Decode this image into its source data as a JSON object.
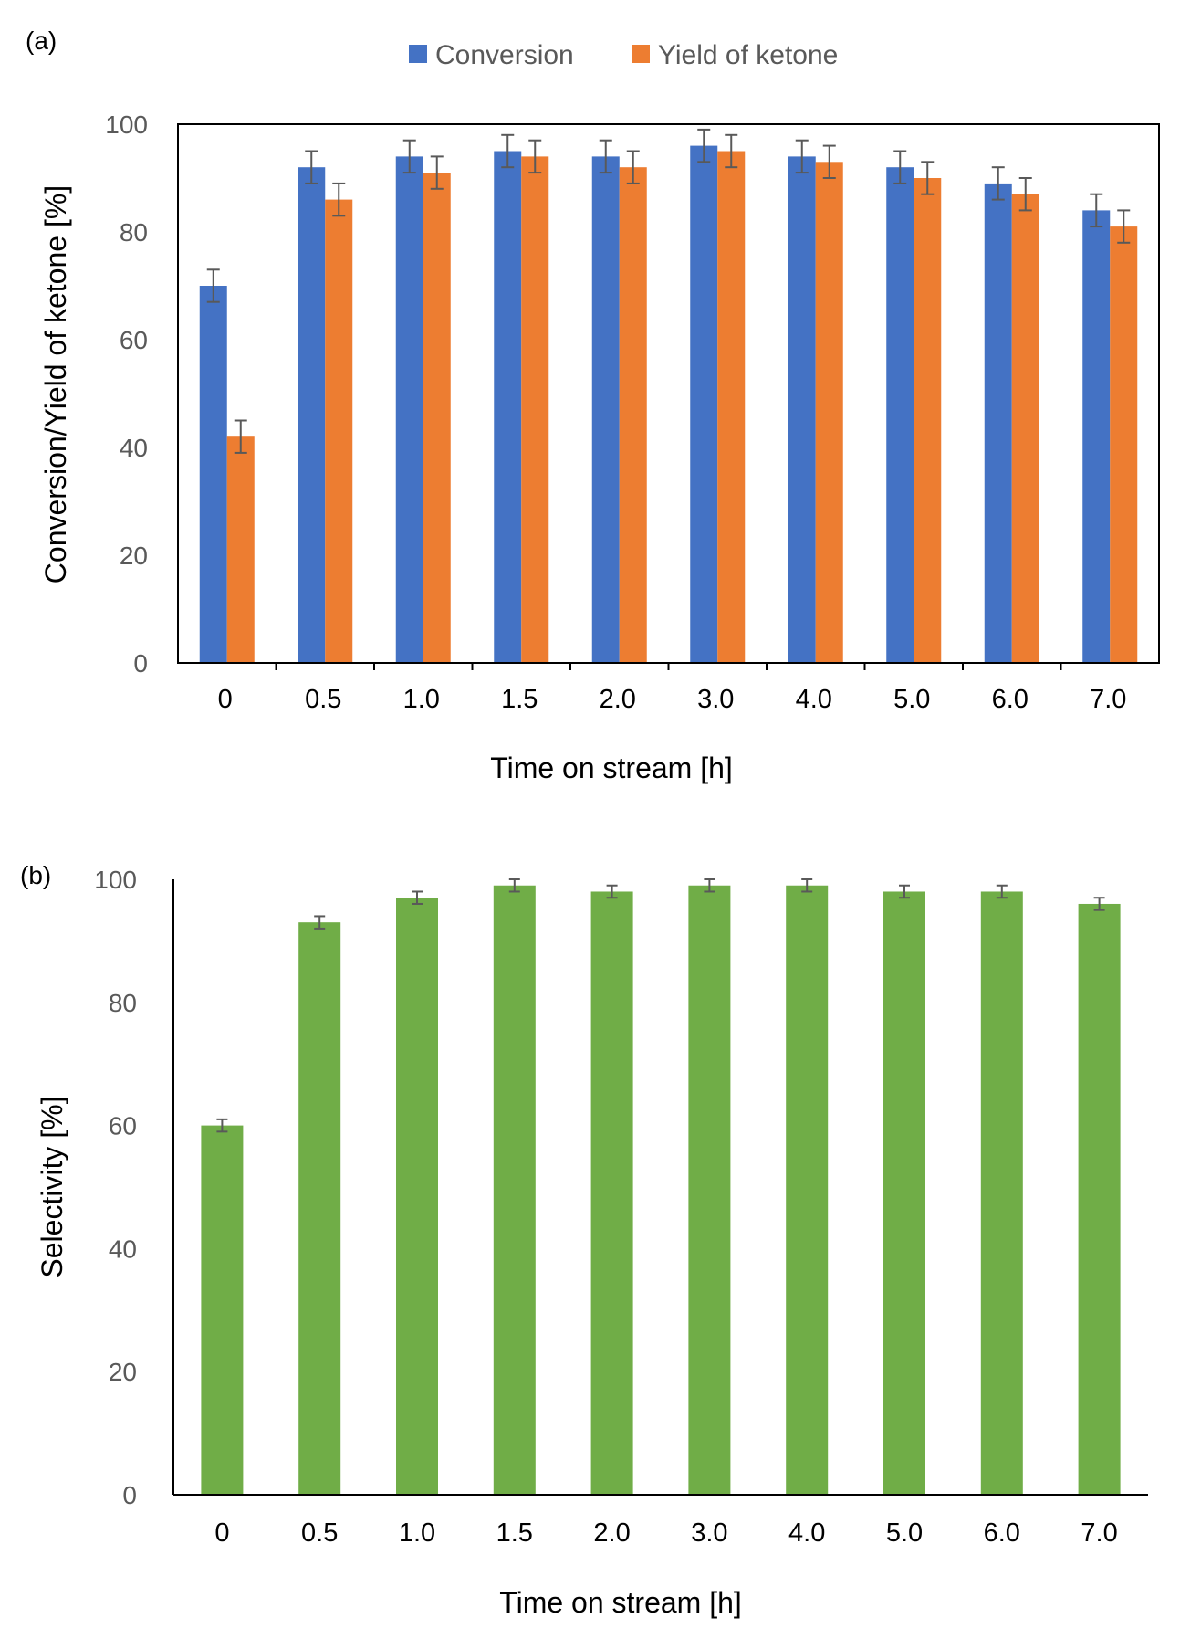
{
  "chart_data": [
    {
      "panel_label": "(a)",
      "type": "bar",
      "categories": [
        "0",
        "0.5",
        "1.0",
        "1.5",
        "2.0",
        "3.0",
        "4.0",
        "5.0",
        "6.0",
        "7.0"
      ],
      "series": [
        {
          "name": "Conversion",
          "color": "#4472C4",
          "values": [
            70,
            92,
            94,
            95,
            94,
            96,
            94,
            92,
            89,
            84
          ],
          "errors": [
            3,
            3,
            3,
            3,
            3,
            3,
            3,
            3,
            3,
            3
          ]
        },
        {
          "name": "Yield of ketone",
          "color": "#ED7D31",
          "values": [
            42,
            86,
            91,
            94,
            92,
            95,
            93,
            90,
            87,
            81
          ],
          "errors": [
            3,
            3,
            3,
            3,
            3,
            3,
            3,
            3,
            3,
            3
          ]
        }
      ],
      "xlabel": "Time on stream [h]",
      "ylabel": "Conversion/Yield of ketone [%]",
      "ylim": [
        0,
        100
      ],
      "yticks": [
        "0",
        "20",
        "40",
        "60",
        "80",
        "100"
      ],
      "legend": "top",
      "grid": false
    },
    {
      "panel_label": "(b)",
      "type": "bar",
      "categories": [
        "0",
        "0.5",
        "1.0",
        "1.5",
        "2.0",
        "3.0",
        "4.0",
        "5.0",
        "6.0",
        "7.0"
      ],
      "series": [
        {
          "name": "Selectivity",
          "color": "#70AD47",
          "values": [
            60,
            93,
            97,
            99,
            98,
            99,
            99,
            98,
            98,
            96
          ],
          "errors": [
            1,
            1,
            1,
            1,
            1,
            1,
            1,
            1,
            1,
            1
          ]
        }
      ],
      "xlabel": "Time on stream [h]",
      "ylabel": "Selectivity [%]",
      "ylim": [
        0,
        100
      ],
      "yticks": [
        "0",
        "20",
        "40",
        "60",
        "80",
        "100"
      ],
      "grid": false
    }
  ]
}
